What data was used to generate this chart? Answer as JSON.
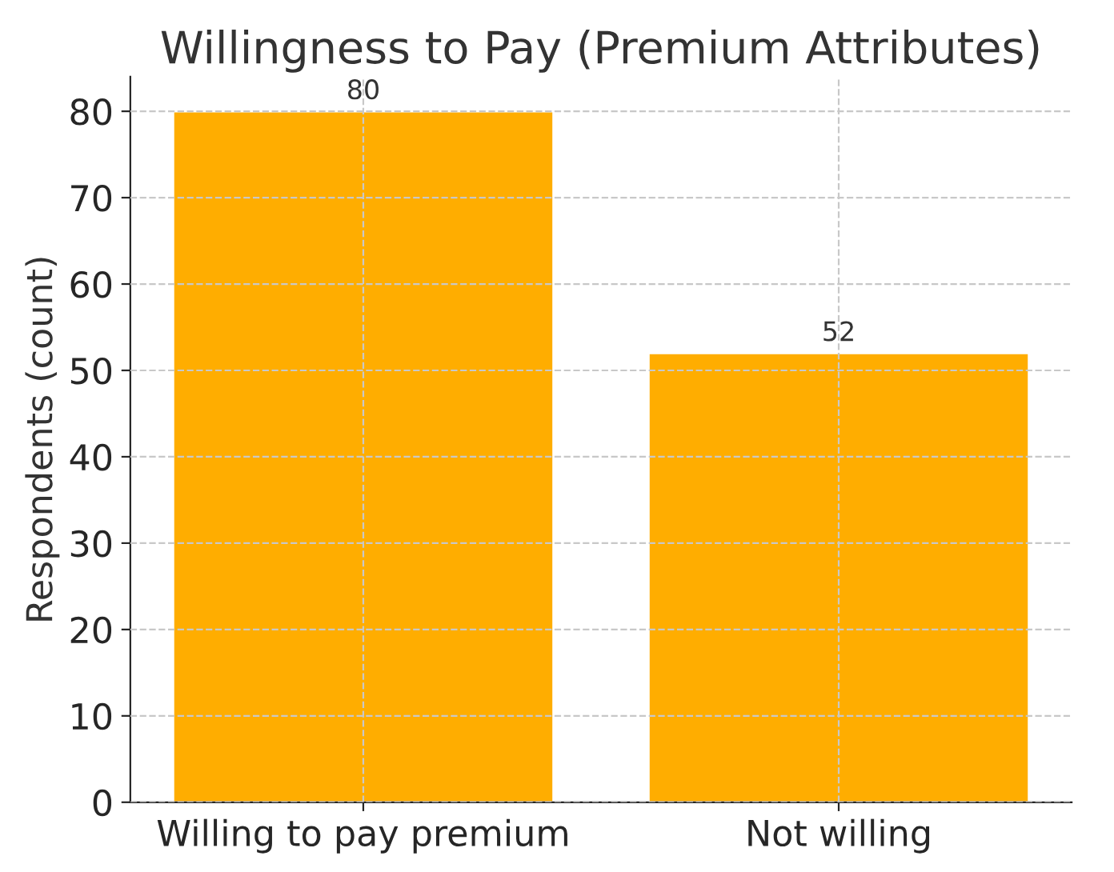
{
  "chart_data": {
    "type": "bar",
    "title": "Willingness to Pay (Premium Attributes)",
    "ylabel": "Respondents (count)",
    "categories": [
      "Willing to pay premium",
      "Not willing"
    ],
    "values": [
      80,
      52
    ],
    "color": "#ffad00",
    "ylim": [
      0,
      84
    ],
    "yticks": [
      0,
      10,
      20,
      30,
      40,
      50,
      60,
      70,
      80
    ],
    "grid": true,
    "data_labels": true
  }
}
